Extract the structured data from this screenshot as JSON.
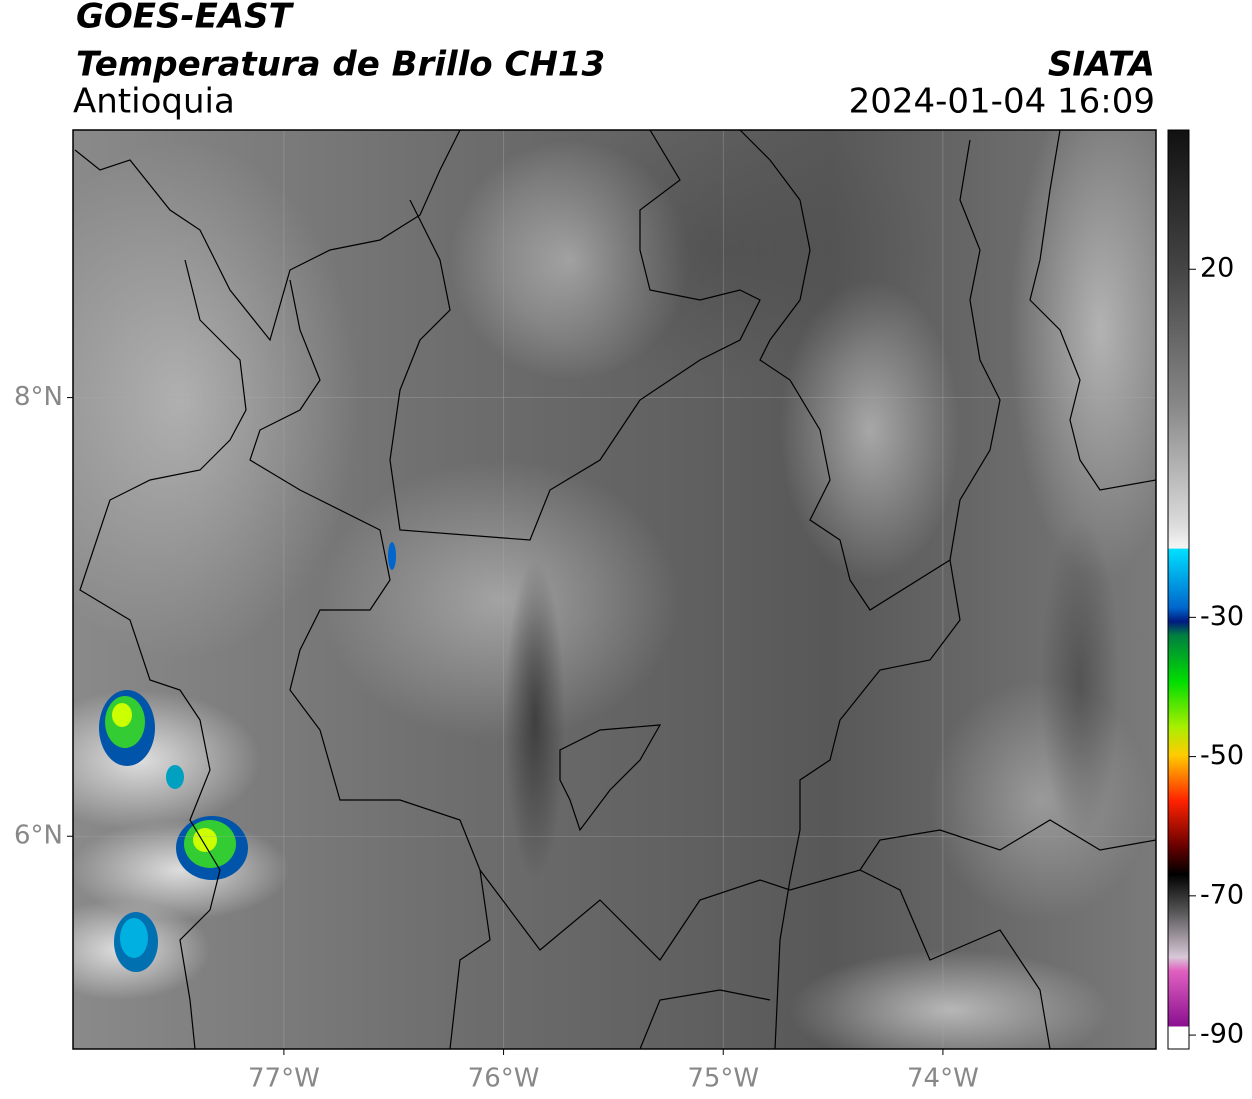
{
  "header": {
    "line1": "GOES-EAST",
    "line2": "Temperatura de Brillo CH13",
    "region": "Antioquia",
    "source": "SIATA",
    "datetime": "2024-01-04 16:09"
  },
  "map": {
    "lonlim": [
      -77.96,
      -73.03
    ],
    "latlim": [
      5.03,
      9.22
    ],
    "lon_ticks": [
      {
        "value": -77,
        "label": "77°W"
      },
      {
        "value": -76,
        "label": "76°W"
      },
      {
        "value": -75,
        "label": "75°W"
      },
      {
        "value": -74,
        "label": "74°W"
      }
    ],
    "lat_ticks": [
      {
        "value": 8,
        "label": "8°N"
      },
      {
        "value": 6,
        "label": "6°N"
      }
    ]
  },
  "colorbar": {
    "lim": [
      -92,
      40
    ],
    "ticks": [
      20,
      -30,
      -50,
      -70,
      -90
    ]
  }
}
